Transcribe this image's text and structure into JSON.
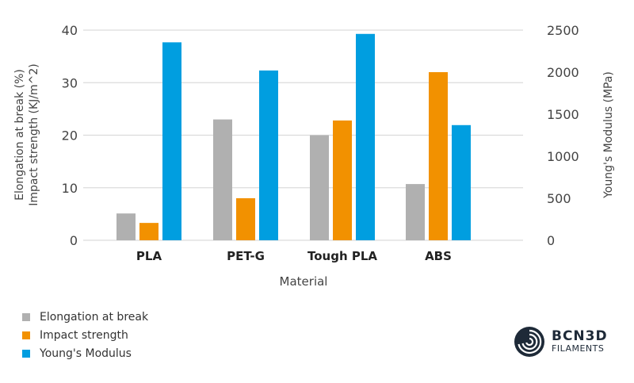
{
  "chart_data": {
    "type": "bar",
    "categories": [
      "PLA",
      "PET-G",
      "Tough PLA",
      "ABS"
    ],
    "xlabel": "Material",
    "ylabel_left": [
      "Elongation at break (%)",
      "Impact strength (KJ/m^2)"
    ],
    "ylabel_right": "Young's Modulus (MPa)",
    "ylim_left": [
      0,
      40
    ],
    "ylim_right": [
      0,
      2500
    ],
    "yticks_left": [
      "0",
      "10",
      "20",
      "30",
      "40"
    ],
    "yticks_right": [
      "0",
      "500",
      "1000",
      "1500",
      "2000",
      "2500"
    ],
    "grid": true,
    "legend_placement": "bottom-left",
    "series": [
      {
        "name": "Elongation at break",
        "axis": "left",
        "color": "#b0b0b0",
        "values": [
          5.1,
          23.0,
          20.0,
          10.7
        ]
      },
      {
        "name": "Impact strength",
        "axis": "left",
        "color": "#f29100",
        "values": [
          3.3,
          8.0,
          22.8,
          32.0
        ]
      },
      {
        "name": "Young's Modulus",
        "axis": "right",
        "color": "#009ee0",
        "values": [
          2355,
          2020,
          2455,
          1370
        ]
      }
    ]
  },
  "logo": {
    "line1": "BCN3D",
    "line2": "FILAMENTS"
  }
}
